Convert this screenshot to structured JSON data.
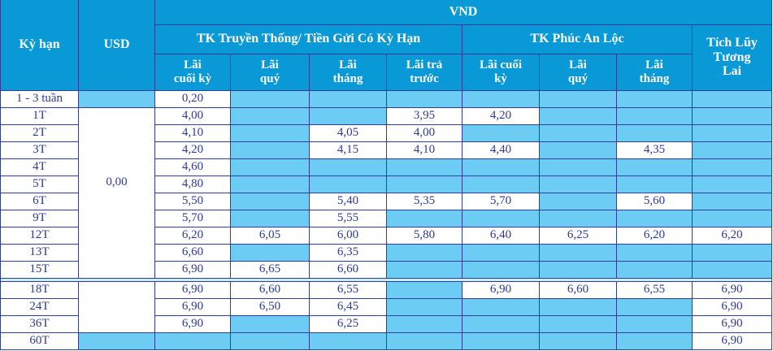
{
  "colors": {
    "header_blue": "#0899D6",
    "cell_light_blue": "#6CCCF4",
    "border_navy": "#2E3E99",
    "text_navy": "#2B3A9D",
    "header_text": "#FFFFFF",
    "separator_strip": "#C8EDFB"
  },
  "table": {
    "header": {
      "ky_han": "Kỳ hạn",
      "usd": "USD",
      "vnd": "VND",
      "group_traditional": "TK Truyền Thống/ Tiền Gửi Có Kỳ Hạn",
      "group_phuc_an_loc": "TK Phúc An Lộc",
      "tich_luy_tuong_lai": "Tích Lũy\nTương\nLai",
      "sub": [
        "Lãi\ncuối kỳ",
        "Lãi\nquý",
        "Lãi\ntháng",
        "Lãi trả\ntrước",
        "Lãi cuối\nkỳ",
        "Lãi\nquý",
        "Lãi\ntháng"
      ]
    },
    "rows": [
      {
        "label": "1 - 3 tuần",
        "usd": "empty",
        "values": [
          "0,20",
          "",
          "",
          "",
          "",
          "",
          "",
          ""
        ]
      },
      {
        "label": "1T",
        "usd": {
          "rowspan": 10,
          "value": "0,00"
        },
        "values": [
          "4,00",
          "",
          "",
          "3,95",
          "4,20",
          "",
          "",
          ""
        ]
      },
      {
        "label": "2T",
        "usd": "skip",
        "values": [
          "4,10",
          "",
          "4,05",
          "4,00",
          "",
          "",
          "",
          ""
        ]
      },
      {
        "label": "3T",
        "usd": "skip",
        "values": [
          "4,20",
          "",
          "4,15",
          "4,10",
          "4,40",
          "",
          "4,35",
          ""
        ]
      },
      {
        "label": "4T",
        "usd": "skip",
        "values": [
          "4,60",
          "",
          "",
          "",
          "",
          "",
          "",
          ""
        ]
      },
      {
        "label": "5T",
        "usd": "skip",
        "values": [
          "4,80",
          "",
          "",
          "",
          "",
          "",
          "",
          ""
        ]
      },
      {
        "label": "6T",
        "usd": "skip",
        "values": [
          "5,50",
          "",
          "5,40",
          "5,35",
          "5,70",
          "",
          "5,60",
          ""
        ]
      },
      {
        "label": "9T",
        "usd": "skip",
        "values": [
          "5,70",
          "",
          "5,55",
          "",
          "",
          "",
          "",
          ""
        ]
      },
      {
        "label": "12T",
        "usd": "skip",
        "values": [
          "6,20",
          "6,05",
          "6,00",
          "5,80",
          "6,40",
          "6,25",
          "6,20",
          "6,20"
        ]
      },
      {
        "label": "13T",
        "usd": "skip",
        "values": [
          "6,60",
          "",
          "6,35",
          "",
          "",
          "",
          "",
          ""
        ]
      },
      {
        "label": "15T",
        "usd": "skip",
        "values": [
          "6,90",
          "6,65",
          "6,60",
          "",
          "",
          "",
          "",
          ""
        ]
      },
      {
        "separator": true
      },
      {
        "label": "18T",
        "usd": {
          "rowspan": 3,
          "value": ""
        },
        "values": [
          "6,90",
          "6,60",
          "6,55",
          "",
          "6,90",
          "6,60",
          "6,55",
          "6,90"
        ]
      },
      {
        "label": "24T",
        "usd": "skip",
        "values": [
          "6,90",
          "6,50",
          "6,45",
          "",
          "",
          "",
          "",
          "6,90"
        ]
      },
      {
        "label": "36T",
        "usd": "skip",
        "values": [
          "6,90",
          "",
          "6,25",
          "",
          "",
          "",
          "",
          "6,90"
        ]
      },
      {
        "label": "60T",
        "usd": "empty",
        "values": [
          "",
          "",
          "",
          "",
          "",
          "",
          "",
          "6,90"
        ]
      }
    ]
  }
}
